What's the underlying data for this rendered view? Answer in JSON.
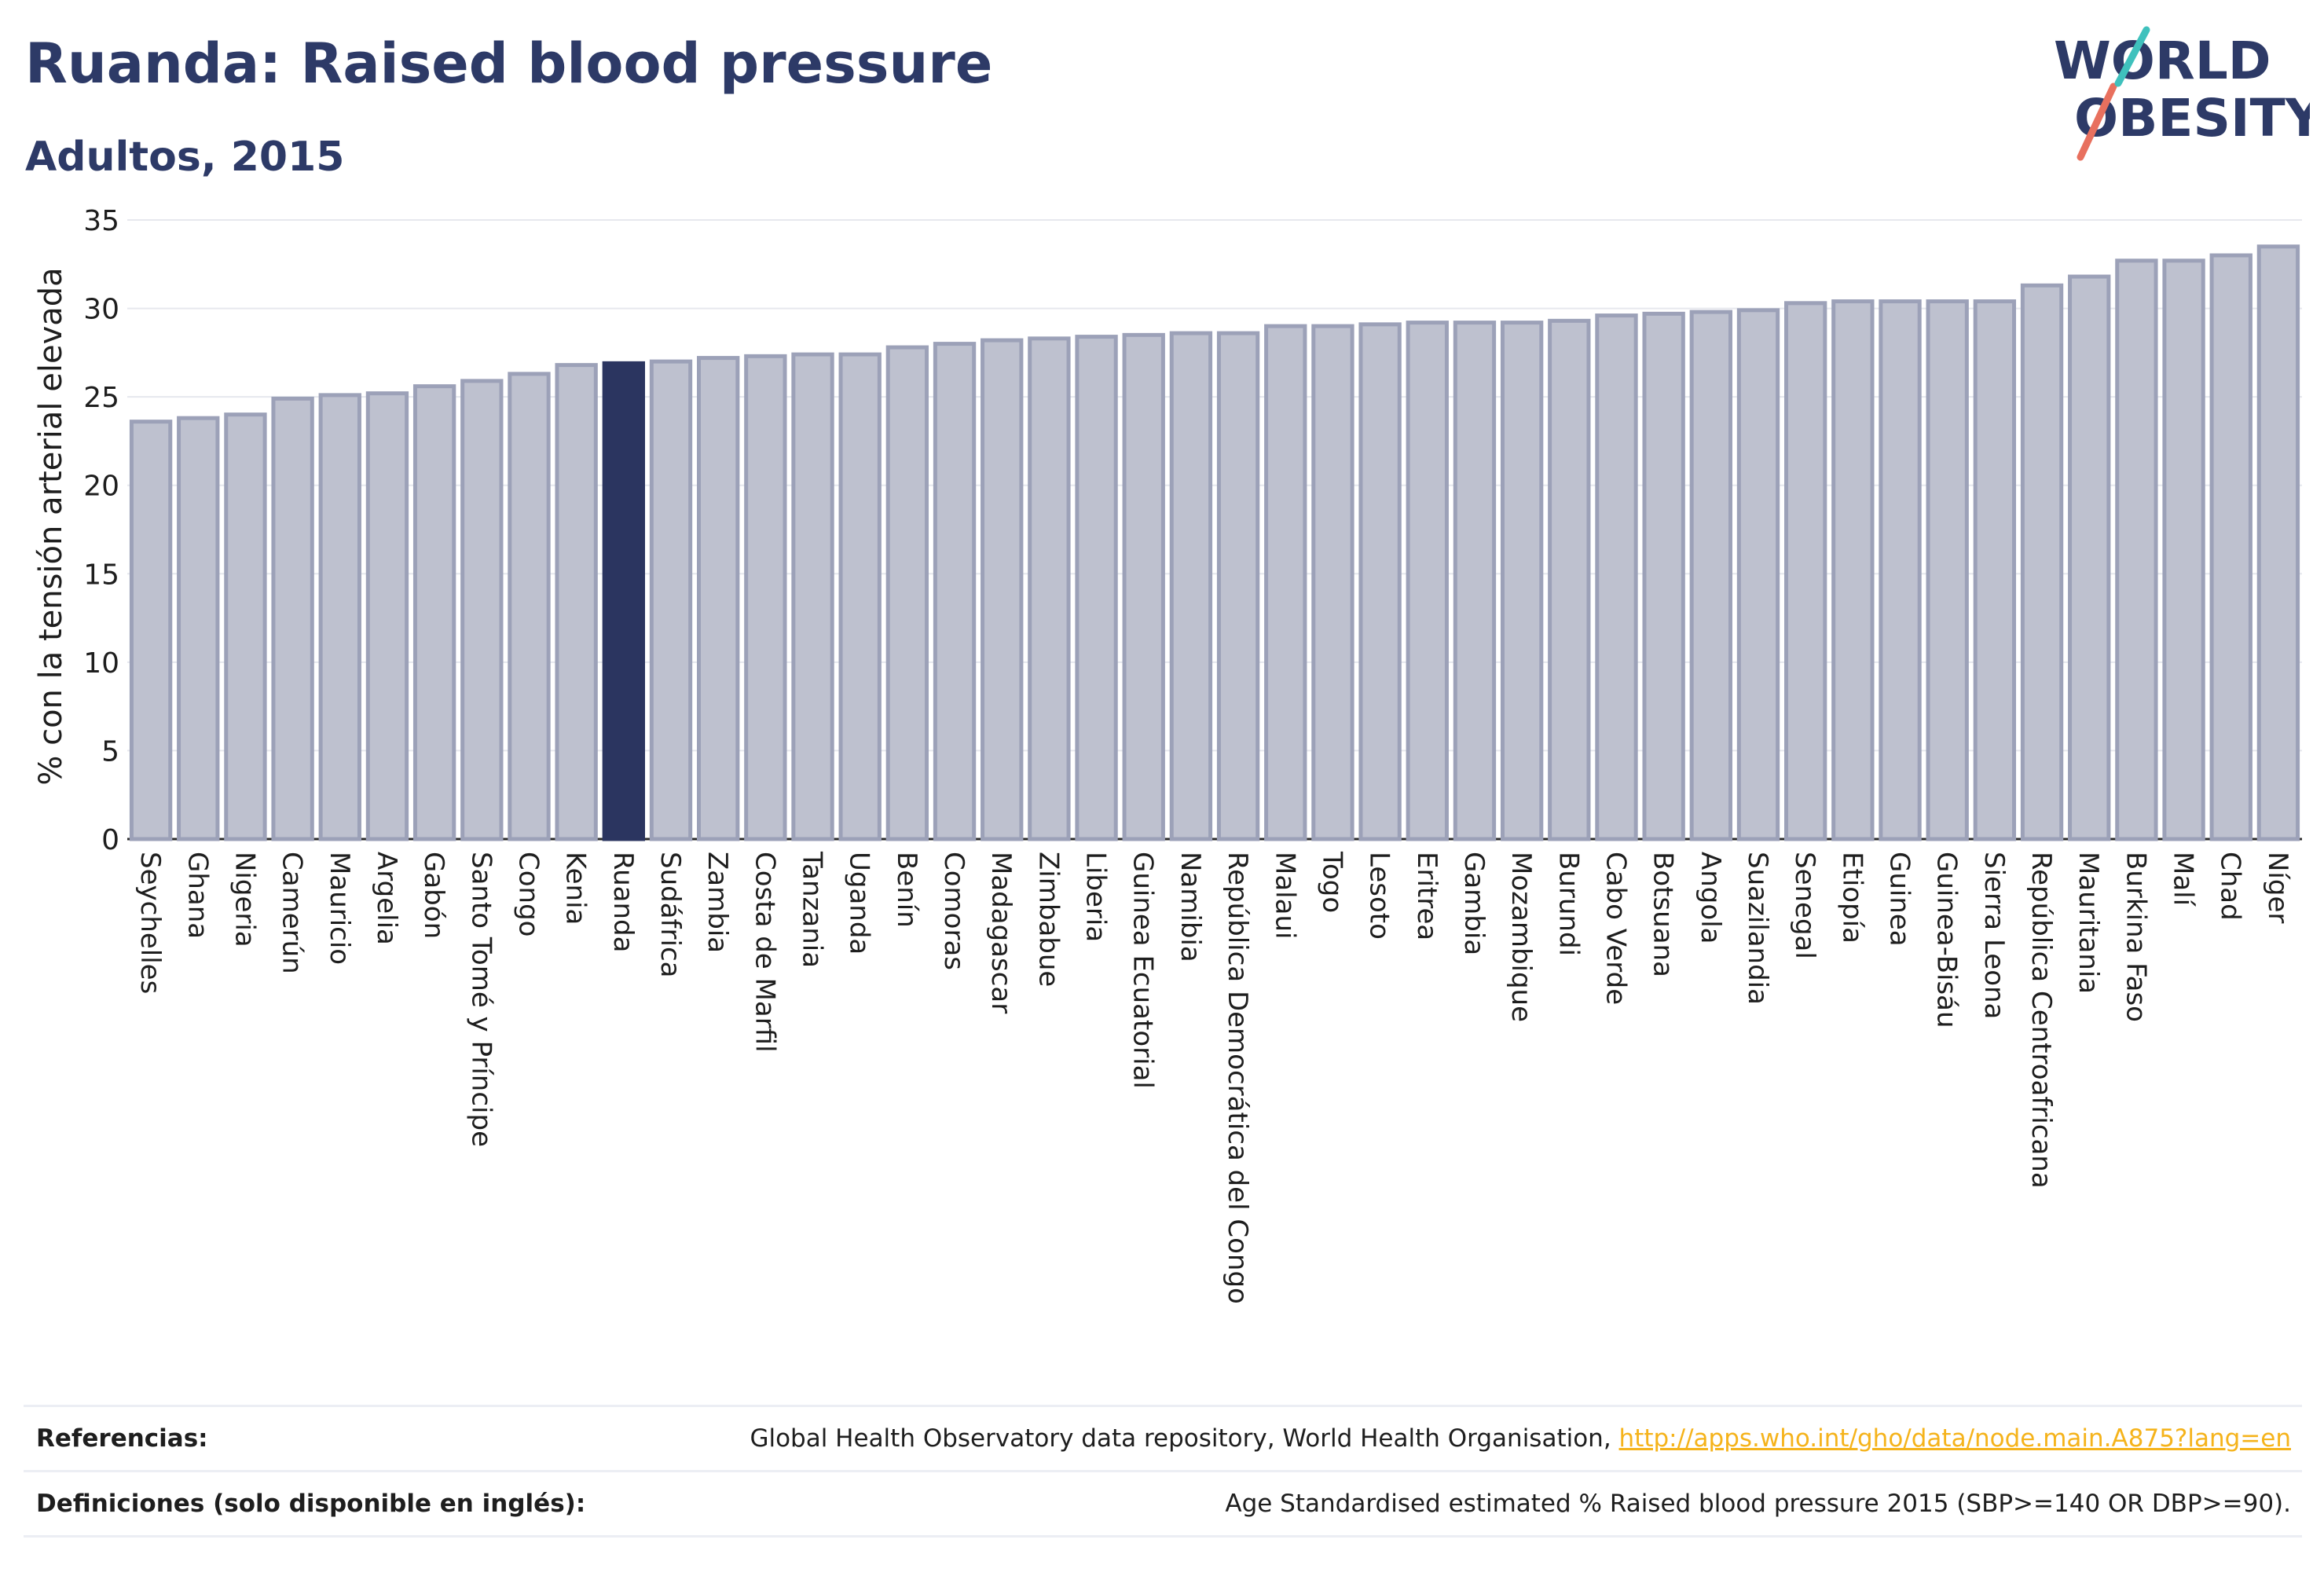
{
  "header": {
    "title": "Ruanda: Raised blood pressure",
    "subtitle": "Adultos, 2015"
  },
  "logo": {
    "line1": "WORLD",
    "line2": "OBESITY",
    "icon": "slash-logo-icon"
  },
  "colors": {
    "bar": "#bec1cf",
    "bar_border": "#9ca1b8",
    "highlight": "#2b3560",
    "grid": "#e6e8ee",
    "title": "#2d3a67",
    "link": "#f5b31b"
  },
  "chart_data": {
    "type": "bar",
    "ylabel": "% con la tensión arterial elevada",
    "xlabel": "",
    "ylim": [
      0,
      35
    ],
    "yticks": [
      0,
      5,
      10,
      15,
      20,
      25,
      30,
      35
    ],
    "grid": true,
    "highlight": "Ruanda",
    "categories": [
      "Seychelles",
      "Ghana",
      "Nigeria",
      "Camerún",
      "Mauricio",
      "Argelia",
      "Gabón",
      "Santo Tomé y Príncipe",
      "Congo",
      "Kenia",
      "Ruanda",
      "Sudáfrica",
      "Zambia",
      "Costa de Marfil",
      "Tanzania",
      "Uganda",
      "Benín",
      "Comoras",
      "Madagascar",
      "Zimbabue",
      "Liberia",
      "Guinea Ecuatorial",
      "Namibia",
      "República Democrática del Congo",
      "Malaui",
      "Togo",
      "Lesoto",
      "Eritrea",
      "Gambia",
      "Mozambique",
      "Burundi",
      "Cabo Verde",
      "Botsuana",
      "Angola",
      "Suazilandia",
      "Senegal",
      "Etiopía",
      "Guinea",
      "Guinea-Bisáu",
      "Sierra Leona",
      "República Centroafricana",
      "Mauritania",
      "Burkina Faso",
      "Malí",
      "Chad",
      "Níger"
    ],
    "values": [
      23.6,
      23.8,
      24.0,
      24.9,
      25.1,
      25.2,
      25.6,
      25.9,
      26.3,
      26.8,
      26.9,
      27.0,
      27.2,
      27.3,
      27.4,
      27.4,
      27.8,
      28.0,
      28.2,
      28.3,
      28.4,
      28.5,
      28.6,
      28.6,
      29.0,
      29.0,
      29.1,
      29.2,
      29.2,
      29.2,
      29.3,
      29.6,
      29.7,
      29.8,
      29.9,
      30.3,
      30.4,
      30.4,
      30.4,
      30.4,
      31.3,
      31.8,
      32.7,
      32.7,
      33.0,
      33.5
    ]
  },
  "footer": {
    "references_label": "Referencias:",
    "references_text": "Global Health Observatory data repository, World Health Organisation, ",
    "references_link": "http://apps.who.int/gho/data/node.main.A875?lang=en",
    "definitions_label": "Definiciones (solo disponible en inglés):",
    "definitions_text": "Age Standardised estimated % Raised blood pressure 2015 (SBP>=140 OR DBP>=90)."
  }
}
